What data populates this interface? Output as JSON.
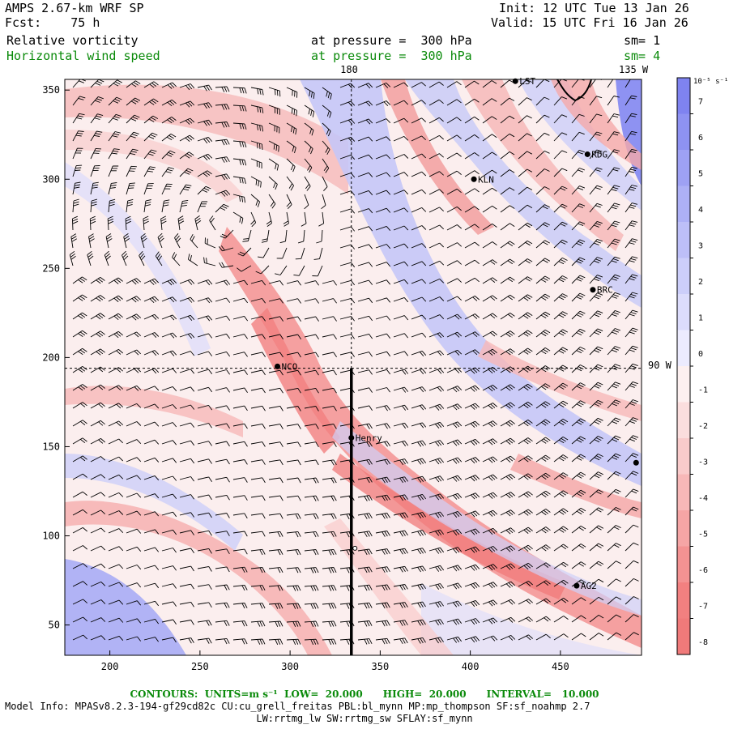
{
  "header": {
    "model": "AMPS 2.67-km WRF SP",
    "fcst": "Fcst:    75 h",
    "init": "Init: 12 UTC Tue 13 Jan 26",
    "valid": "Valid: 15 UTC Fri 16 Jan 26",
    "field1": "Relative vorticity",
    "field2": "Horizontal wind speed",
    "level1": "at pressure =  300 hPa",
    "level2": "at pressure =  300 hPa",
    "sm1": "sm= 1",
    "sm2": "sm= 4"
  },
  "map_labels": {
    "meridian_180": "180",
    "meridian_135w": "135 W",
    "lat_90w": "90 W"
  },
  "colors": {
    "blue_strong": "#7f83f0",
    "red_strong": "#f07a7a",
    "contour_label_green": "#0a8a0a"
  },
  "stations": [
    {
      "name": "LST",
      "x": 425,
      "y": 355
    },
    {
      "name": "RDG",
      "x": 465,
      "y": 314
    },
    {
      "name": "KLN",
      "x": 402,
      "y": 300
    },
    {
      "name": "BRC",
      "x": 468,
      "y": 238
    },
    {
      "name": "NCO",
      "x": 293,
      "y": 195
    },
    {
      "name": "Henry",
      "x": 334,
      "y": 155
    },
    {
      "name": "AG2",
      "x": 459,
      "y": 72
    },
    {
      "name": "",
      "x": 492,
      "y": 141
    }
  ],
  "chart_data": {
    "type": "heatmap",
    "title": "Relative vorticity at pressure = 300 hPa; Horizontal wind speed barbs",
    "x_range": [
      175,
      495
    ],
    "y_range": [
      33,
      356
    ],
    "x_ticks": [
      200,
      250,
      300,
      350,
      400,
      450
    ],
    "y_ticks": [
      50,
      100,
      150,
      200,
      250,
      300,
      350
    ],
    "colorbar": {
      "units": "10⁻⁵ s⁻¹",
      "ticks": [
        7,
        6,
        5,
        4,
        3,
        2,
        1,
        0,
        -1,
        -2,
        -3,
        -4,
        -5,
        -6,
        -7,
        -8
      ],
      "colors": [
        "#7f83f0",
        "#8e92f2",
        "#9ea1f4",
        "#adb0f6",
        "#bdbff8",
        "#ccceFa",
        "#dcdcfc",
        "#ecebfe",
        "#fdf0f0",
        "#fbdede",
        "#f9cbcb",
        "#f7b8b8",
        "#f5a5a5",
        "#f39292",
        "#f28080",
        "#f07a7a"
      ]
    },
    "cross_section_line": {
      "x": 334,
      "y_from": 33,
      "y_to": 194
    },
    "crosshair": {
      "x_180": 334,
      "y_90w": 194
    },
    "center_marker": {
      "x": 336,
      "y": 93
    }
  },
  "footer": {
    "contours": "CONTOURS:  UNITS=m s⁻¹  LOW=  20.000      HIGH=  20.000      INTERVAL=   10.000",
    "model_info": "Model Info: MPASv8.2.3-194-gf29cd82c CU:cu_grell_freitas PBL:bl_mynn MP:mp_thompson SF:sf_noahmp 2.7",
    "model_info2": "LW:rrtmg_lw SW:rrtmg_sw SFLAY:sf_mynn"
  }
}
